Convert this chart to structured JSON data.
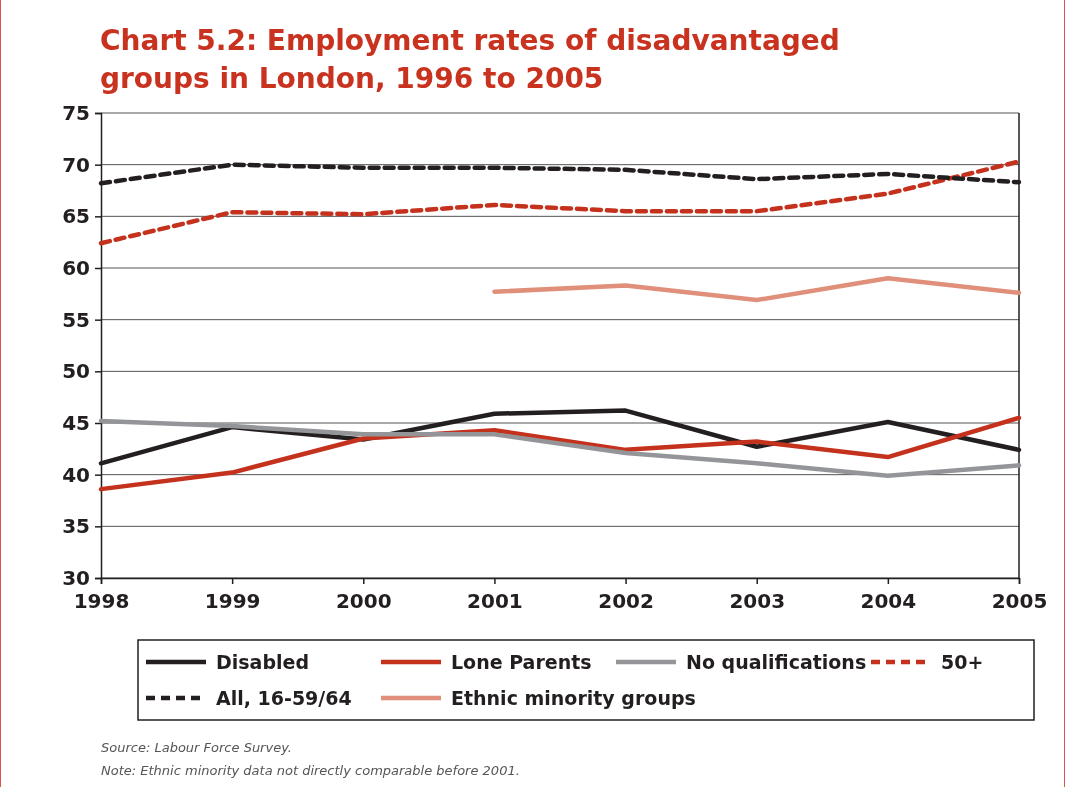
{
  "chart_data": {
    "type": "line",
    "title": "Chart 5.2: Employment rates of disadvantaged groups in London, 1996 to 2005",
    "categories": [
      "1998",
      "1999",
      "2000",
      "2001",
      "2002",
      "2003",
      "2004",
      "2005"
    ],
    "ylim": [
      30,
      75
    ],
    "yticks": [
      30,
      35,
      40,
      45,
      50,
      55,
      60,
      65,
      70,
      75
    ],
    "grid": "y",
    "legend": "bottom",
    "marker": "none",
    "series": [
      {
        "name": "Disabled",
        "color": "#231f20",
        "line_style": "solid",
        "values": [
          41.1,
          44.6,
          43.4,
          45.9,
          46.2,
          42.7,
          45.1,
          42.4
        ]
      },
      {
        "name": "Lone Parents",
        "color": "#c4321d",
        "line_style": "solid",
        "values": [
          38.6,
          40.2,
          43.5,
          44.3,
          42.4,
          43.2,
          41.7,
          45.5
        ]
      },
      {
        "name": "No qualifications",
        "color": "#939598",
        "line_style": "solid",
        "values": [
          45.2,
          44.7,
          43.9,
          43.9,
          42.1,
          41.1,
          39.9,
          40.9
        ]
      },
      {
        "name": "50+",
        "color": "#c4321d",
        "line_style": "dashed",
        "values": [
          62.4,
          65.4,
          65.2,
          66.1,
          65.5,
          65.5,
          67.2,
          70.3
        ]
      },
      {
        "name": "All, 16-59/64",
        "color": "#231f20",
        "line_style": "dashed",
        "values": [
          68.2,
          70.0,
          69.7,
          69.7,
          69.5,
          68.6,
          69.1,
          68.3
        ]
      },
      {
        "name": "Ethnic minority groups",
        "color": "#e0907a",
        "line_style": "solid",
        "values": [
          null,
          null,
          null,
          57.7,
          58.3,
          56.9,
          59.0,
          57.6
        ]
      }
    ],
    "annotations": [
      "Source: Labour Force Survey.",
      "Note: Ethnic minority data not directly comparable before 2001."
    ]
  }
}
